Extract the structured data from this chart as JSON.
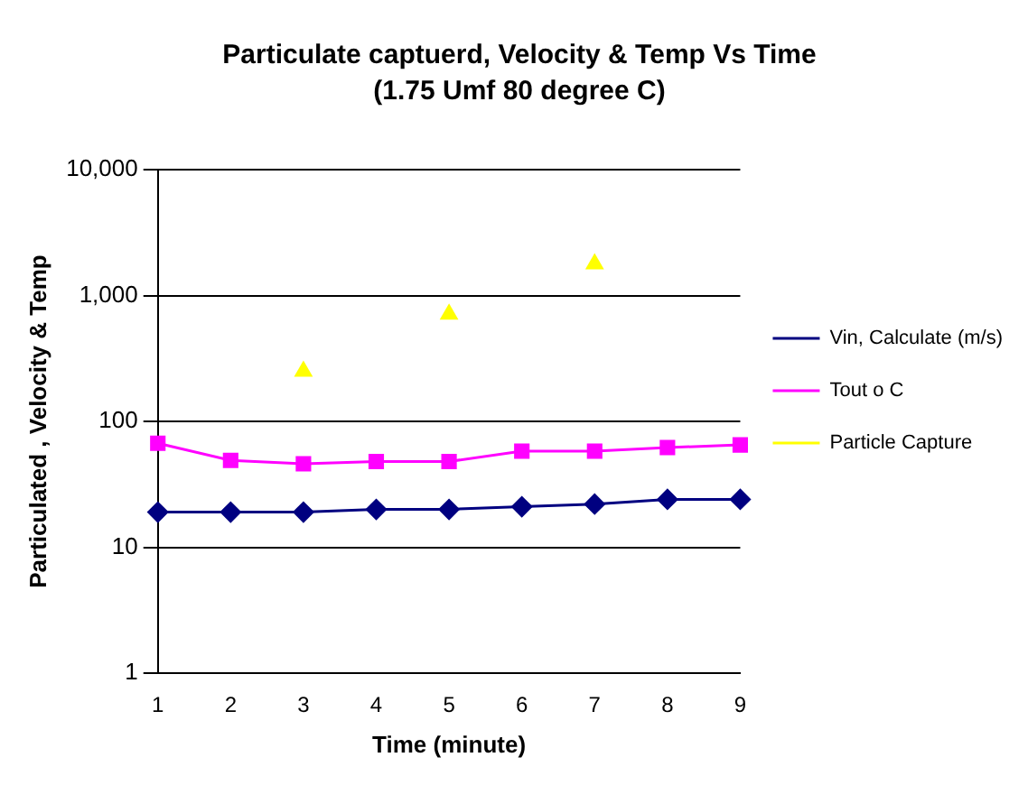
{
  "chart_data": {
    "type": "line",
    "title": "Particulate captuerd, Velocity & Temp Vs Time",
    "subtitle": "(1.75 Umf 80 degree C)",
    "xlabel": "Time (minute)",
    "ylabel": "Particulated , Velocity & Temp",
    "categories": [
      "1",
      "2",
      "3",
      "4",
      "5",
      "6",
      "7",
      "8",
      "9"
    ],
    "series": [
      {
        "name": "Vin, Calculate (m/s)",
        "color": "#000080",
        "marker": "diamond",
        "values": [
          19,
          19,
          19,
          20,
          20,
          21,
          22,
          24,
          24
        ]
      },
      {
        "name": "Tout o C",
        "color": "#ff00ff",
        "marker": "square",
        "values": [
          67,
          49,
          46,
          48,
          48,
          58,
          58,
          62,
          65
        ]
      },
      {
        "name": "Particle Capture",
        "type": "scatter",
        "color": "#ffff00",
        "marker": "triangle",
        "values": [
          null,
          null,
          250,
          null,
          710,
          null,
          1780,
          null,
          null
        ]
      }
    ],
    "log": "y",
    "ylim": [
      1,
      10000
    ],
    "yticks": [
      1,
      10,
      100,
      {
        "value": 1000,
        "label": "1,000"
      },
      {
        "value": 10000,
        "label": "10,000"
      }
    ],
    "grid": "y",
    "legend": "right",
    "line_style": "solid"
  }
}
